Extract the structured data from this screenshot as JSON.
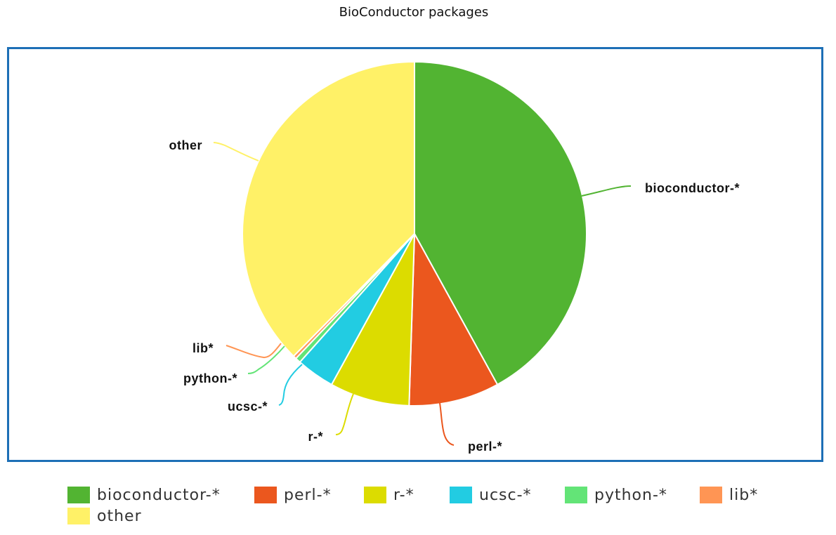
{
  "chart_data": {
    "type": "pie",
    "title": "BioConductor packages",
    "slices": [
      {
        "label": "bioconductor-*",
        "value": 42.0,
        "color": "#52b432"
      },
      {
        "label": "perl-*",
        "value": 8.5,
        "color": "#eb571e"
      },
      {
        "label": "r-*",
        "value": 7.5,
        "color": "#dcdc00"
      },
      {
        "label": "ucsc-*",
        "value": 3.6,
        "color": "#22cce2"
      },
      {
        "label": "python-*",
        "value": 0.5,
        "color": "#63e477"
      },
      {
        "label": "lib*",
        "value": 0.3,
        "color": "#ff9554"
      },
      {
        "label": "other",
        "value": 37.6,
        "color": "#fff167"
      }
    ],
    "legend_position": "bottom"
  }
}
